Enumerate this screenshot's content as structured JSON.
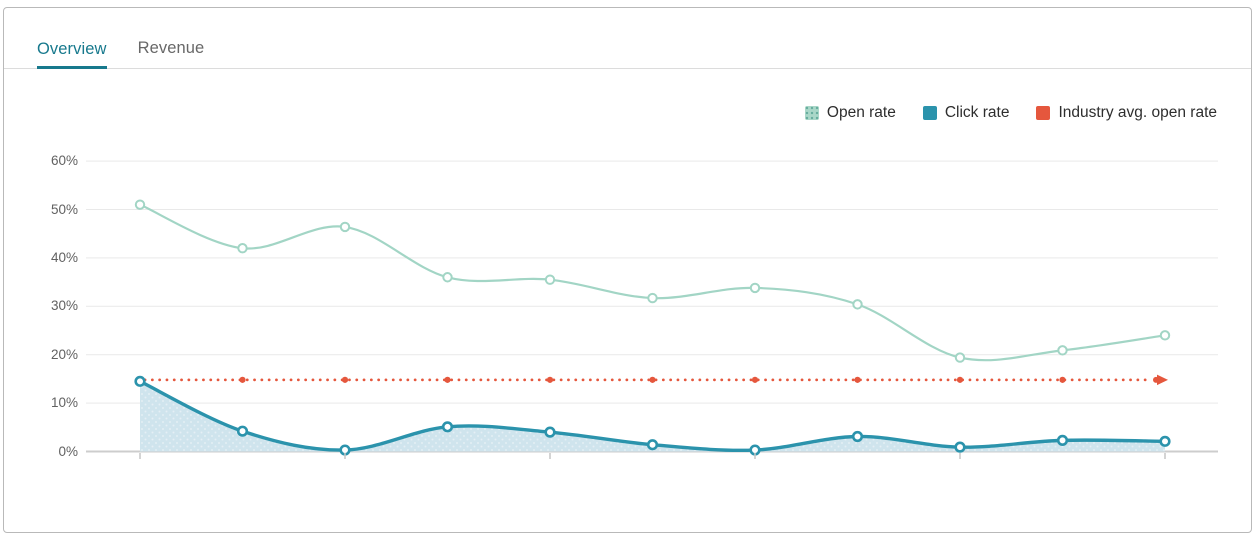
{
  "tabs": [
    {
      "label": "Overview",
      "active": true
    },
    {
      "label": "Revenue",
      "active": false
    }
  ],
  "legend": [
    {
      "label": "Open rate",
      "color": "#a2d5c5",
      "swatch_style": "dotted-mint"
    },
    {
      "label": "Click rate",
      "color": "#2b93ac",
      "swatch_style": "solid-teal"
    },
    {
      "label": "Industry avg. open rate",
      "color": "#e5573d",
      "swatch_style": "solid-red"
    }
  ],
  "colors": {
    "open_rate": "#a2d5c5",
    "click_rate": "#2b93ac",
    "click_area_fill": "#cfe4ed",
    "click_area_dots": "#e4eff5",
    "industry_avg": "#e5573d",
    "grid": "#e9e9e9",
    "axis": "#cdcdcd",
    "tick": "#c6c6c6",
    "active_tab": "#17798d"
  },
  "chart_data": {
    "type": "line",
    "points": 11,
    "x": [
      1,
      2,
      3,
      4,
      5,
      6,
      7,
      8,
      9,
      10,
      11
    ],
    "x_tick_marks_at_points": [
      1,
      3,
      5,
      7,
      9,
      11
    ],
    "series": [
      {
        "name": "Open rate",
        "type": "line",
        "color": "#a2d5c5",
        "values": [
          51,
          42,
          46.4,
          36,
          35.5,
          31.7,
          33.8,
          30.4,
          19.4,
          20.9,
          24
        ]
      },
      {
        "name": "Click rate",
        "type": "area-line",
        "color": "#2b93ac",
        "fill": "#cfe4ed",
        "values": [
          14.5,
          4.2,
          0.3,
          5.1,
          4,
          1.4,
          0.3,
          3.1,
          0.9,
          2.3,
          2.1
        ]
      },
      {
        "name": "Industry avg. open rate",
        "type": "dotted-reference-line",
        "color": "#e5573d",
        "value": 14.8
      }
    ],
    "yticks": [
      "0%",
      "10%",
      "20%",
      "30%",
      "40%",
      "50%",
      "60%"
    ],
    "ylim": [
      0,
      65
    ],
    "xlabel": "",
    "ylabel": "",
    "units": "%",
    "grid": "horizontal",
    "legend_position": "top-right"
  }
}
